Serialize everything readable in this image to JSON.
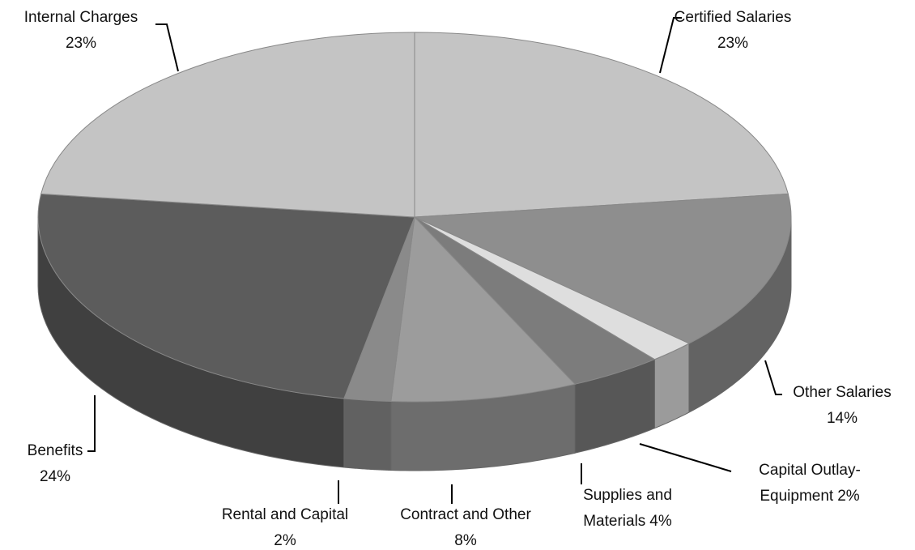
{
  "chart_data": {
    "type": "pie",
    "categories": [
      "Certified Salaries",
      "Other Salaries",
      "Capital Outlay-Equipment",
      "Supplies and Materials",
      "Contract and Other",
      "Rental and Capital",
      "Benefits",
      "Internal Charges"
    ],
    "values": [
      23,
      14,
      2,
      4,
      8,
      2,
      24,
      23
    ],
    "value_labels": [
      "23%",
      "14%",
      "2%",
      "4%",
      "8%",
      "2%",
      "24%",
      "23%"
    ],
    "colors": [
      "#c4c4c4",
      "#8e8e8e",
      "#dedede",
      "#7c7c7c",
      "#9c9c9c",
      "#8a8a8a",
      "#5c5c5c",
      "#c4c4c4"
    ]
  }
}
